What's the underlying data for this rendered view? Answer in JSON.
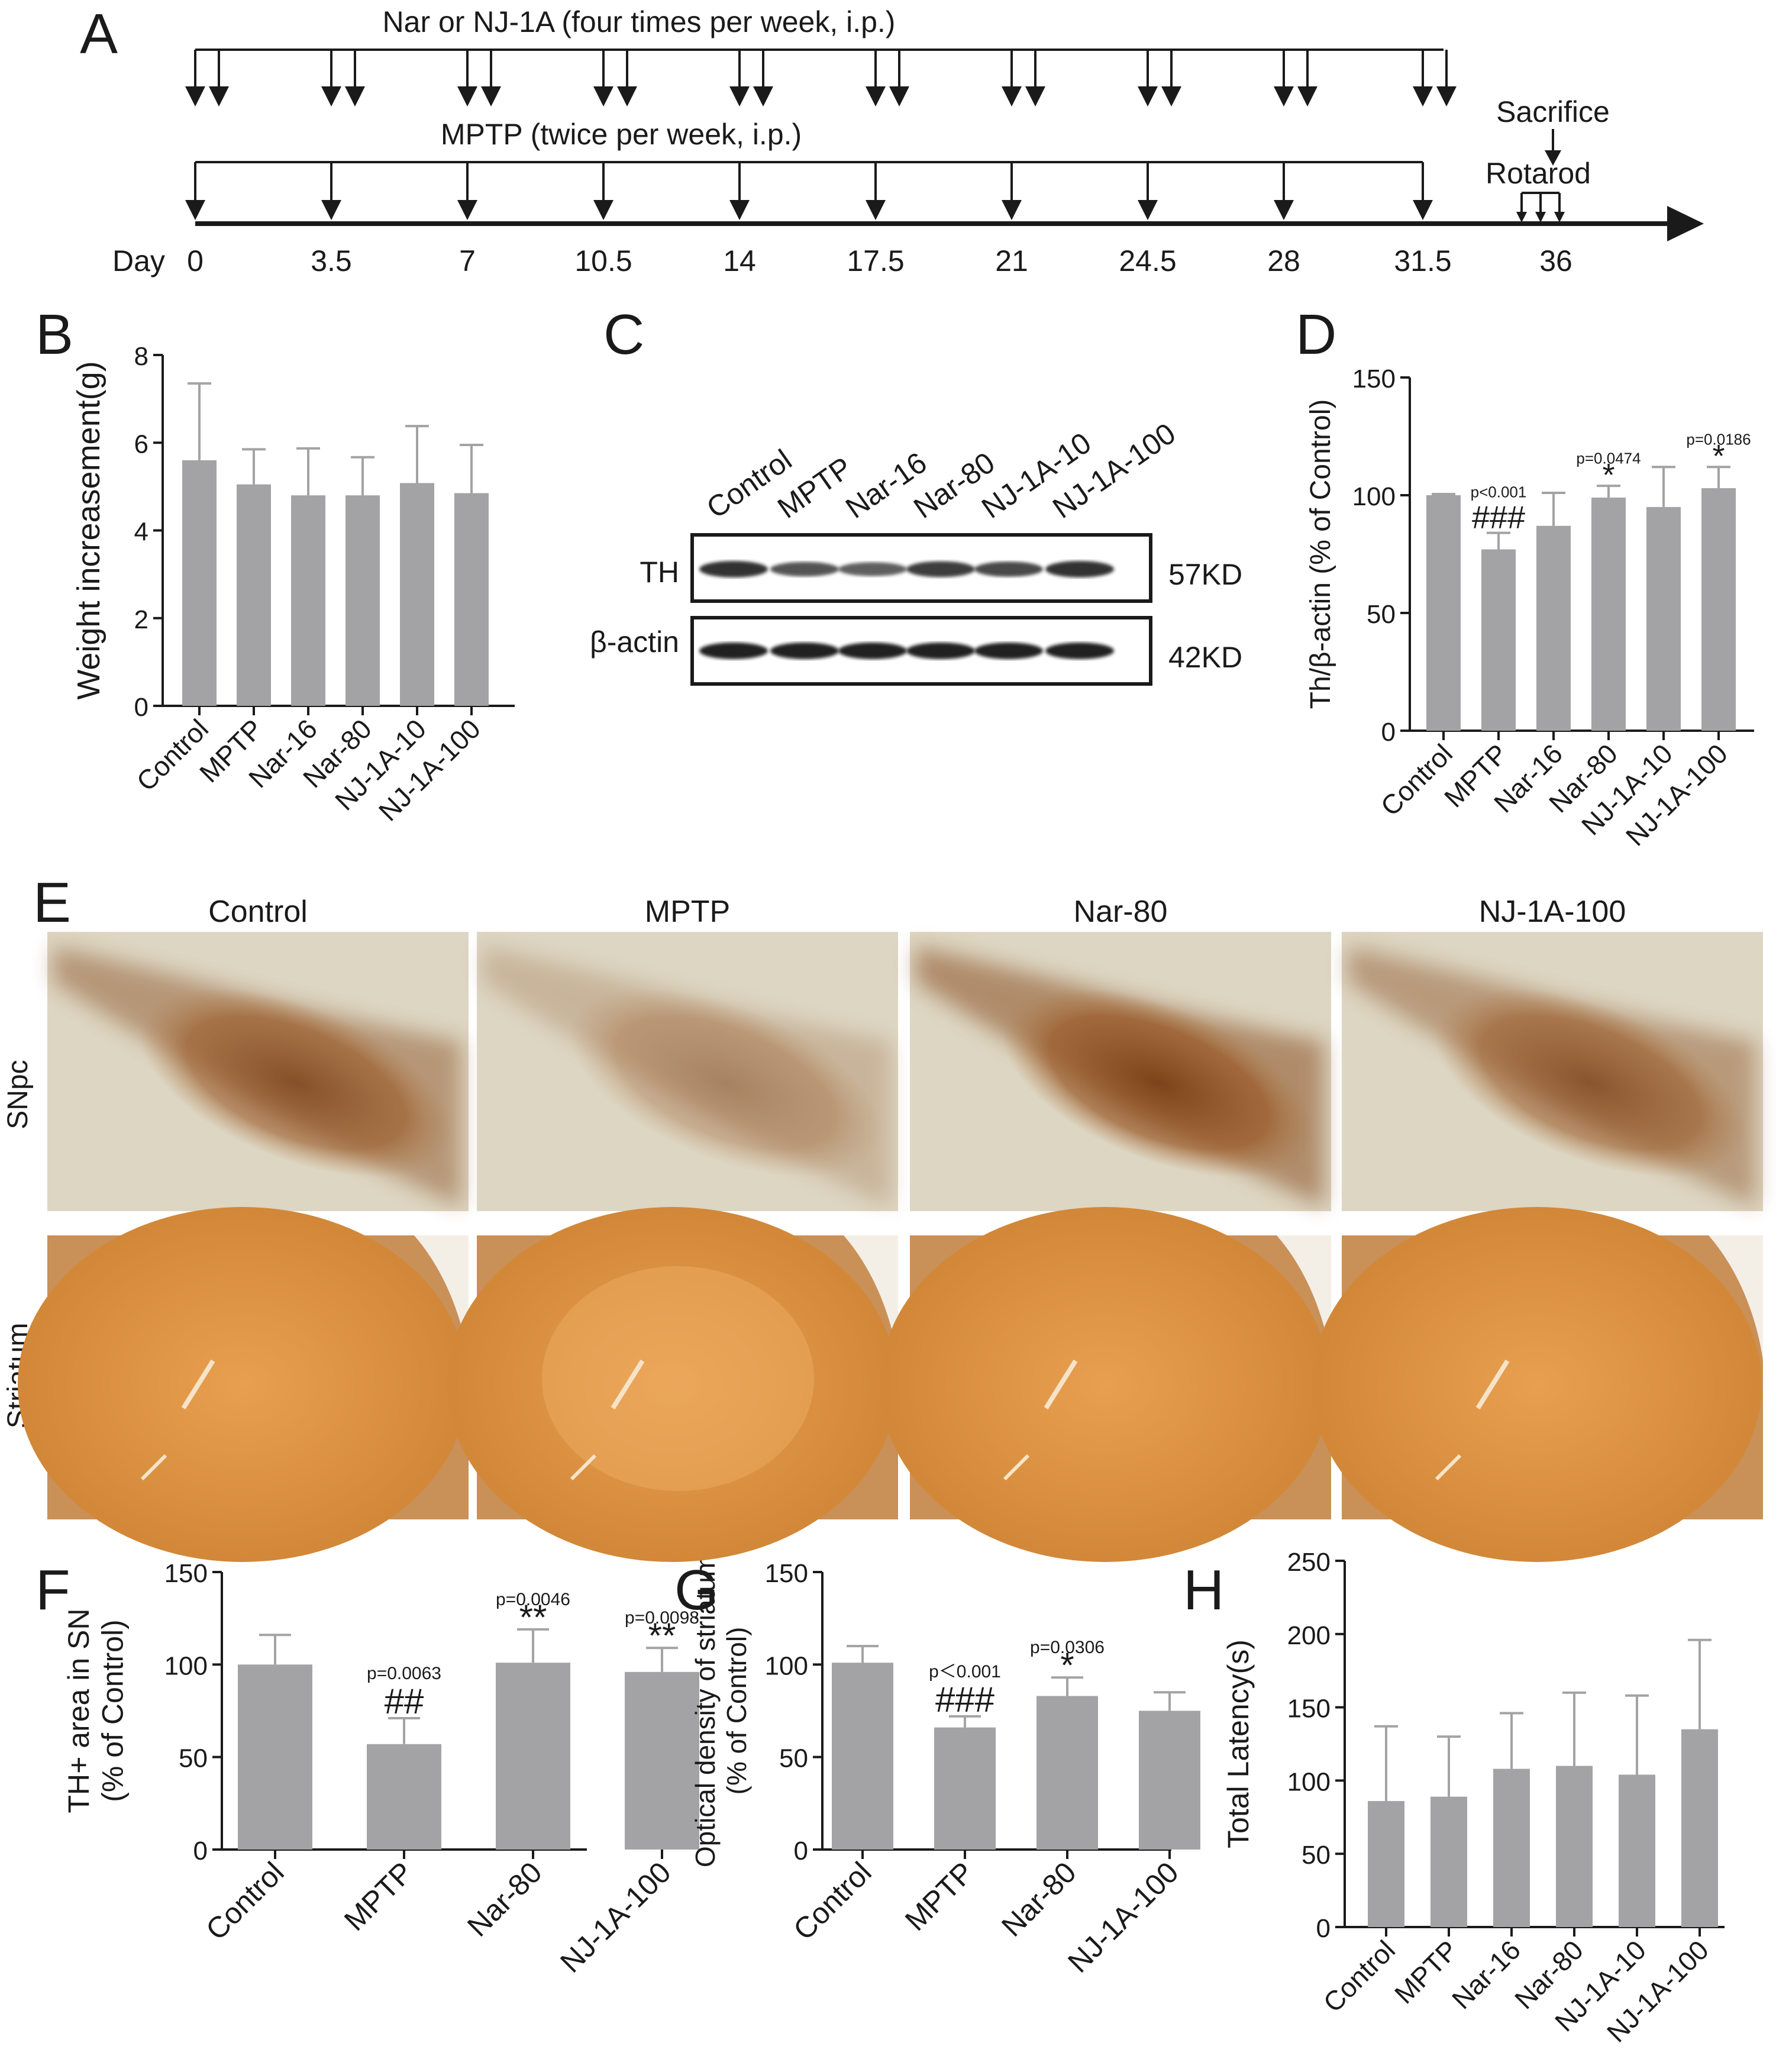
{
  "panel_labels": {
    "A": "A",
    "B": "B",
    "C": "C",
    "D": "D",
    "E": "E",
    "F": "F",
    "G": "G",
    "H": "H"
  },
  "colors": {
    "bar": "#a3a3a5",
    "ink": "#1a1a1a",
    "snpc_bg": "#d9d2bd",
    "snpc_stain": "#8a4f22",
    "striatum_stain": "#d9933f"
  },
  "timeline": {
    "top_label": "Nar or NJ-1A (four times per week, i.p.)",
    "mid_label": "MPTP (twice per week, i.p.)",
    "day_prefix": "Day",
    "days": [
      "0",
      "3.5",
      "7",
      "10.5",
      "14",
      "17.5",
      "21",
      "24.5",
      "28",
      "31.5",
      "36"
    ],
    "sacrifice_label": "Sacrifice",
    "rotarod_label": "Rotarod"
  },
  "western": {
    "lanes": [
      "Control",
      "MPTP",
      "Nar-16",
      "Nar-80",
      "NJ-1A-10",
      "NJ-1A-100"
    ],
    "bands": [
      {
        "name": "TH",
        "size": "57KD"
      },
      {
        "name": "β-actin",
        "size": "42KD"
      }
    ]
  },
  "histology": {
    "columns": [
      "Control",
      "MPTP",
      "Nar-80",
      "NJ-1A-100"
    ],
    "rows": [
      "SNpc",
      "Striatum"
    ]
  },
  "chart_data": [
    {
      "panel": "B",
      "type": "bar",
      "ylabel": "Weight increasement(g)",
      "categories": [
        "Control",
        "MPTP",
        "Nar-16",
        "Nar-80",
        "NJ-1A-10",
        "NJ-1A-100"
      ],
      "values": [
        5.6,
        5.05,
        4.8,
        4.8,
        5.08,
        4.85
      ],
      "errors": [
        1.75,
        0.8,
        1.07,
        0.87,
        1.3,
        1.1
      ],
      "ylim": [
        0,
        8
      ],
      "yticks": [
        "0",
        "2",
        "4",
        "6",
        "8"
      ],
      "annotations": []
    },
    {
      "panel": "D",
      "type": "bar",
      "ylabel": "Th/β-actin (% of Control)",
      "categories": [
        "Control",
        "MPTP",
        "Nar-16",
        "Nar-80",
        "NJ-1A-10",
        "NJ-1A-100"
      ],
      "values": [
        100,
        77,
        87,
        99,
        95,
        103
      ],
      "errors": [
        0.5,
        7,
        14,
        5,
        17,
        9
      ],
      "ylim": [
        0,
        150
      ],
      "yticks": [
        "0",
        "50",
        "100",
        "150"
      ],
      "annotations": [
        {
          "index": 1,
          "p": "p<0.001",
          "mark": "###"
        },
        {
          "index": 3,
          "p": "p=0.0474",
          "mark": "*"
        },
        {
          "index": 5,
          "p": "p=0.0186",
          "mark": "*"
        }
      ]
    },
    {
      "panel": "F",
      "type": "bar",
      "ylabel": "TH+ area in SN",
      "ylabel2": "(% of Control)",
      "categories": [
        "Control",
        "MPTP",
        "Nar-80",
        "NJ-1A-100"
      ],
      "values": [
        100,
        57,
        101,
        96
      ],
      "errors": [
        16,
        14,
        18,
        13
      ],
      "ylim": [
        0,
        150
      ],
      "yticks": [
        "0",
        "50",
        "100",
        "150"
      ],
      "annotations": [
        {
          "index": 1,
          "p": "p=0.0063",
          "mark": "##"
        },
        {
          "index": 2,
          "p": "p=0.0046",
          "mark": "**"
        },
        {
          "index": 3,
          "p": "p=0.0098",
          "mark": "**"
        }
      ]
    },
    {
      "panel": "G",
      "type": "bar",
      "ylabel": "Optical density of striatum",
      "ylabel2": "(% of Control)",
      "categories": [
        "Control",
        "MPTP",
        "Nar-80",
        "NJ-1A-100"
      ],
      "values": [
        101,
        66,
        83,
        75
      ],
      "errors": [
        9,
        6,
        10,
        10
      ],
      "ylim": [
        0,
        150
      ],
      "yticks": [
        "0",
        "50",
        "100",
        "150"
      ],
      "annotations": [
        {
          "index": 1,
          "p": "p＜0.001",
          "mark": "###"
        },
        {
          "index": 2,
          "p": "p=0.0306",
          "mark": "*"
        }
      ]
    },
    {
      "panel": "H",
      "type": "bar",
      "ylabel": "Total Latency(s)",
      "categories": [
        "Control",
        "MPTP",
        "Nar-16",
        "Nar-80",
        "NJ-1A-10",
        "NJ-1A-100"
      ],
      "values": [
        86,
        89,
        108,
        110,
        104,
        135
      ],
      "errors": [
        51,
        41,
        38,
        50,
        54,
        61
      ],
      "ylim": [
        0,
        250
      ],
      "yticks": [
        "0",
        "50",
        "100",
        "150",
        "200",
        "250"
      ],
      "annotations": []
    }
  ]
}
